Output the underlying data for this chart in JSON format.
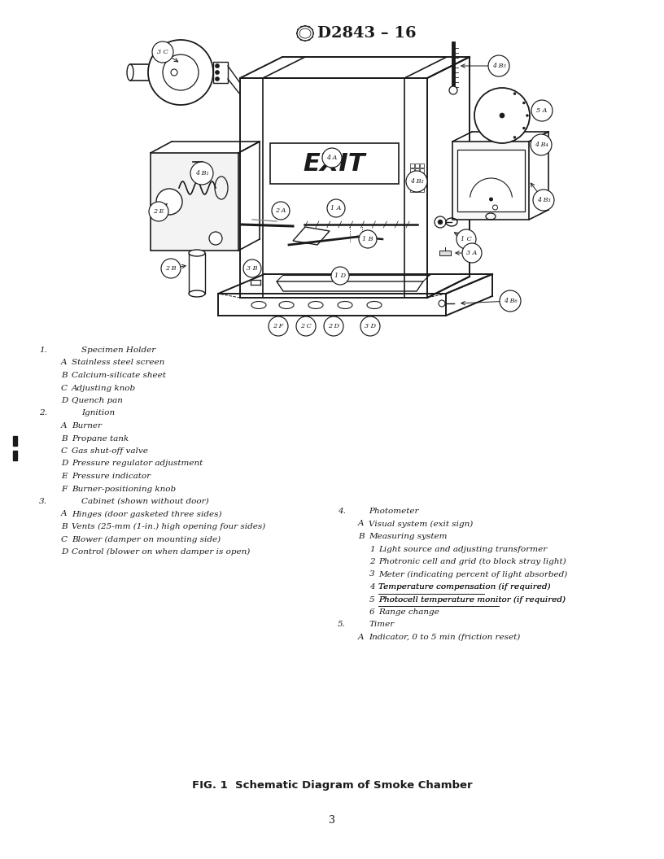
{
  "title": "D2843 – 16",
  "fig_caption": "FIG. 1  Schematic Diagram of Smoke Chamber",
  "page_number": "3",
  "background_color": "#ffffff",
  "text_color": "#1a1a1a",
  "legend_left_col1": [
    {
      "prefix": "1.",
      "text": "Specimen Holder",
      "indent": 0,
      "bold": false,
      "italic": true
    },
    {
      "prefix": "A",
      "text": "Stainless steel screen",
      "indent": 1,
      "bold": false,
      "italic": true
    },
    {
      "prefix": "B",
      "text": "Calcium-silicate sheet",
      "indent": 1,
      "bold": false,
      "italic": true
    },
    {
      "prefix": "C",
      "text": "Adjusting knob",
      "indent": 1,
      "bold": false,
      "italic": true
    },
    {
      "prefix": "D",
      "text": "Quench pan",
      "indent": 1,
      "bold": false,
      "italic": true
    },
    {
      "prefix": "2.",
      "text": "Ignition",
      "indent": 0,
      "bold": false,
      "italic": true
    },
    {
      "prefix": "A",
      "text": "Burner",
      "indent": 1,
      "bold": false,
      "italic": true
    },
    {
      "prefix": "B",
      "text": "Propane tank",
      "indent": 1,
      "bold": false,
      "italic": true
    },
    {
      "prefix": "C",
      "text": "Gas shut-off valve",
      "indent": 1,
      "bold": false,
      "italic": true
    },
    {
      "prefix": "D",
      "text": "Pressure regulator adjustment",
      "indent": 1,
      "bold": false,
      "italic": true
    },
    {
      "prefix": "E",
      "text": "Pressure indicator",
      "indent": 1,
      "bold": false,
      "italic": true
    },
    {
      "prefix": "F",
      "text": "Burner-positioning knob",
      "indent": 1,
      "bold": false,
      "italic": true
    },
    {
      "prefix": "3.",
      "text": "Cabinet (shown without door)",
      "indent": 0,
      "bold": false,
      "italic": true
    },
    {
      "prefix": "A",
      "text": "Hinges (door gasketed three sides)",
      "indent": 1,
      "bold": false,
      "italic": true
    },
    {
      "prefix": "B",
      "text": "Vents (25-mm (1-in.) high opening four sides)",
      "indent": 1,
      "bold": false,
      "italic": true
    },
    {
      "prefix": "C",
      "text": "Blower (damper on mounting side)",
      "indent": 1,
      "bold": false,
      "italic": true
    },
    {
      "prefix": "D",
      "text": "Control (blower on when damper is open)",
      "indent": 1,
      "bold": false,
      "italic": true
    }
  ],
  "legend_right_col": [
    {
      "prefix": "4.",
      "text": "Photometer",
      "indent": 0,
      "bold": false,
      "italic": true
    },
    {
      "prefix": "A",
      "text": "Visual system (exit sign)",
      "indent": 1,
      "bold": false,
      "italic": true
    },
    {
      "prefix": "B",
      "text": "Measuring system",
      "indent": 1,
      "bold": false,
      "italic": true
    },
    {
      "prefix": "1",
      "text": "Light source and adjusting transformer",
      "indent": 2,
      "bold": false,
      "italic": true
    },
    {
      "prefix": "2",
      "text": "Photronic cell and grid (to block stray light)",
      "indent": 2,
      "bold": false,
      "italic": true
    },
    {
      "prefix": "3",
      "text": "Meter (indicating percent of light absorbed)",
      "indent": 2,
      "bold": false,
      "italic": true
    },
    {
      "prefix": "4",
      "text": "Temperature compensation (if required)",
      "indent": 2,
      "bold": false,
      "italic": true,
      "underline": true
    },
    {
      "prefix": "5",
      "text": "Photocell temperature monitor (if required)",
      "indent": 2,
      "bold": false,
      "italic": true,
      "underline": true
    },
    {
      "prefix": "6",
      "text": "Range change",
      "indent": 2,
      "bold": false,
      "italic": true
    },
    {
      "prefix": "5.",
      "text": "Timer",
      "indent": 0,
      "bold": false,
      "italic": true
    },
    {
      "prefix": "A",
      "text": "Indicator, 0 to 5 min (friction reset)",
      "indent": 1,
      "bold": false,
      "italic": true
    }
  ]
}
